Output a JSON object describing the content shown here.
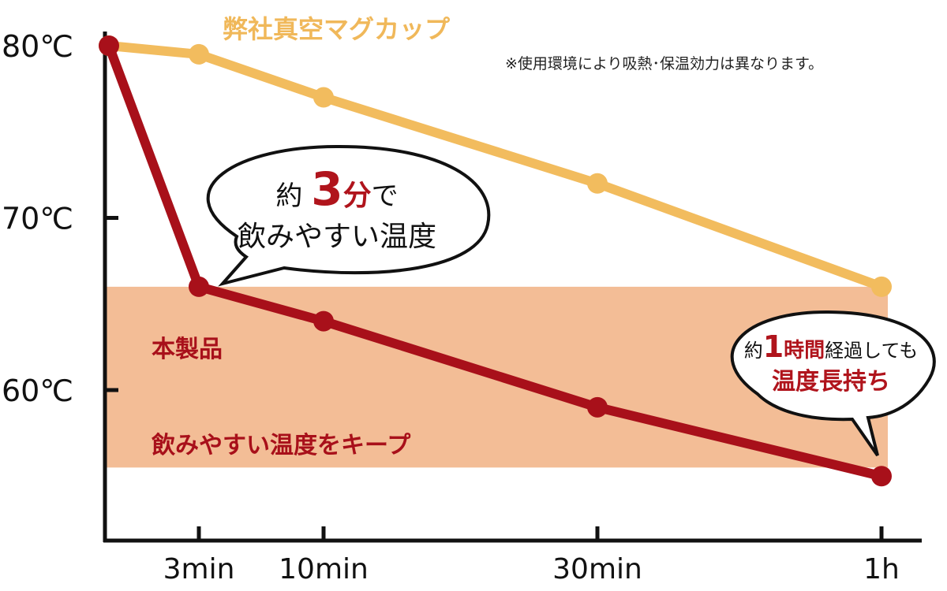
{
  "chart_data": {
    "type": "line",
    "title": "",
    "xlabel": "",
    "ylabel": "",
    "x": [
      "0",
      "3min",
      "10min",
      "30min",
      "1h"
    ],
    "x_tick_labels": [
      "3min",
      "10min",
      "30min",
      "1h"
    ],
    "y_tick_labels": [
      "80℃",
      "70℃",
      "60℃"
    ],
    "ylim": [
      52,
      80
    ],
    "grid": false,
    "series": [
      {
        "name": "弊社真空マグカップ",
        "x": [
          "0",
          "3min",
          "10min",
          "30min",
          "1h"
        ],
        "values": [
          80,
          79.5,
          77,
          72,
          66
        ],
        "color": "#f2bc5e"
      },
      {
        "name": "本製品",
        "x": [
          "0",
          "3min",
          "10min",
          "30min",
          "1h"
        ],
        "values": [
          80,
          66,
          64,
          59,
          55
        ],
        "color": "#a8101a"
      }
    ],
    "band": {
      "from": 55.5,
      "to": 66,
      "label": "飲みやすい温度をキープ",
      "color": "#f3bd96"
    },
    "annotations": [
      {
        "line1_prefix": "約",
        "line1_number": "3",
        "line1_unit": "分",
        "line1_suffix": "で",
        "line2": "飲みやすい温度"
      },
      {
        "line1_prefix": "約",
        "line1_number": "1",
        "line1_unit": "時間",
        "line1_suffix": "経過しても",
        "line2": "温度長持ち"
      }
    ],
    "note": "※使用環境により吸熱･保温効力は異なります。"
  }
}
